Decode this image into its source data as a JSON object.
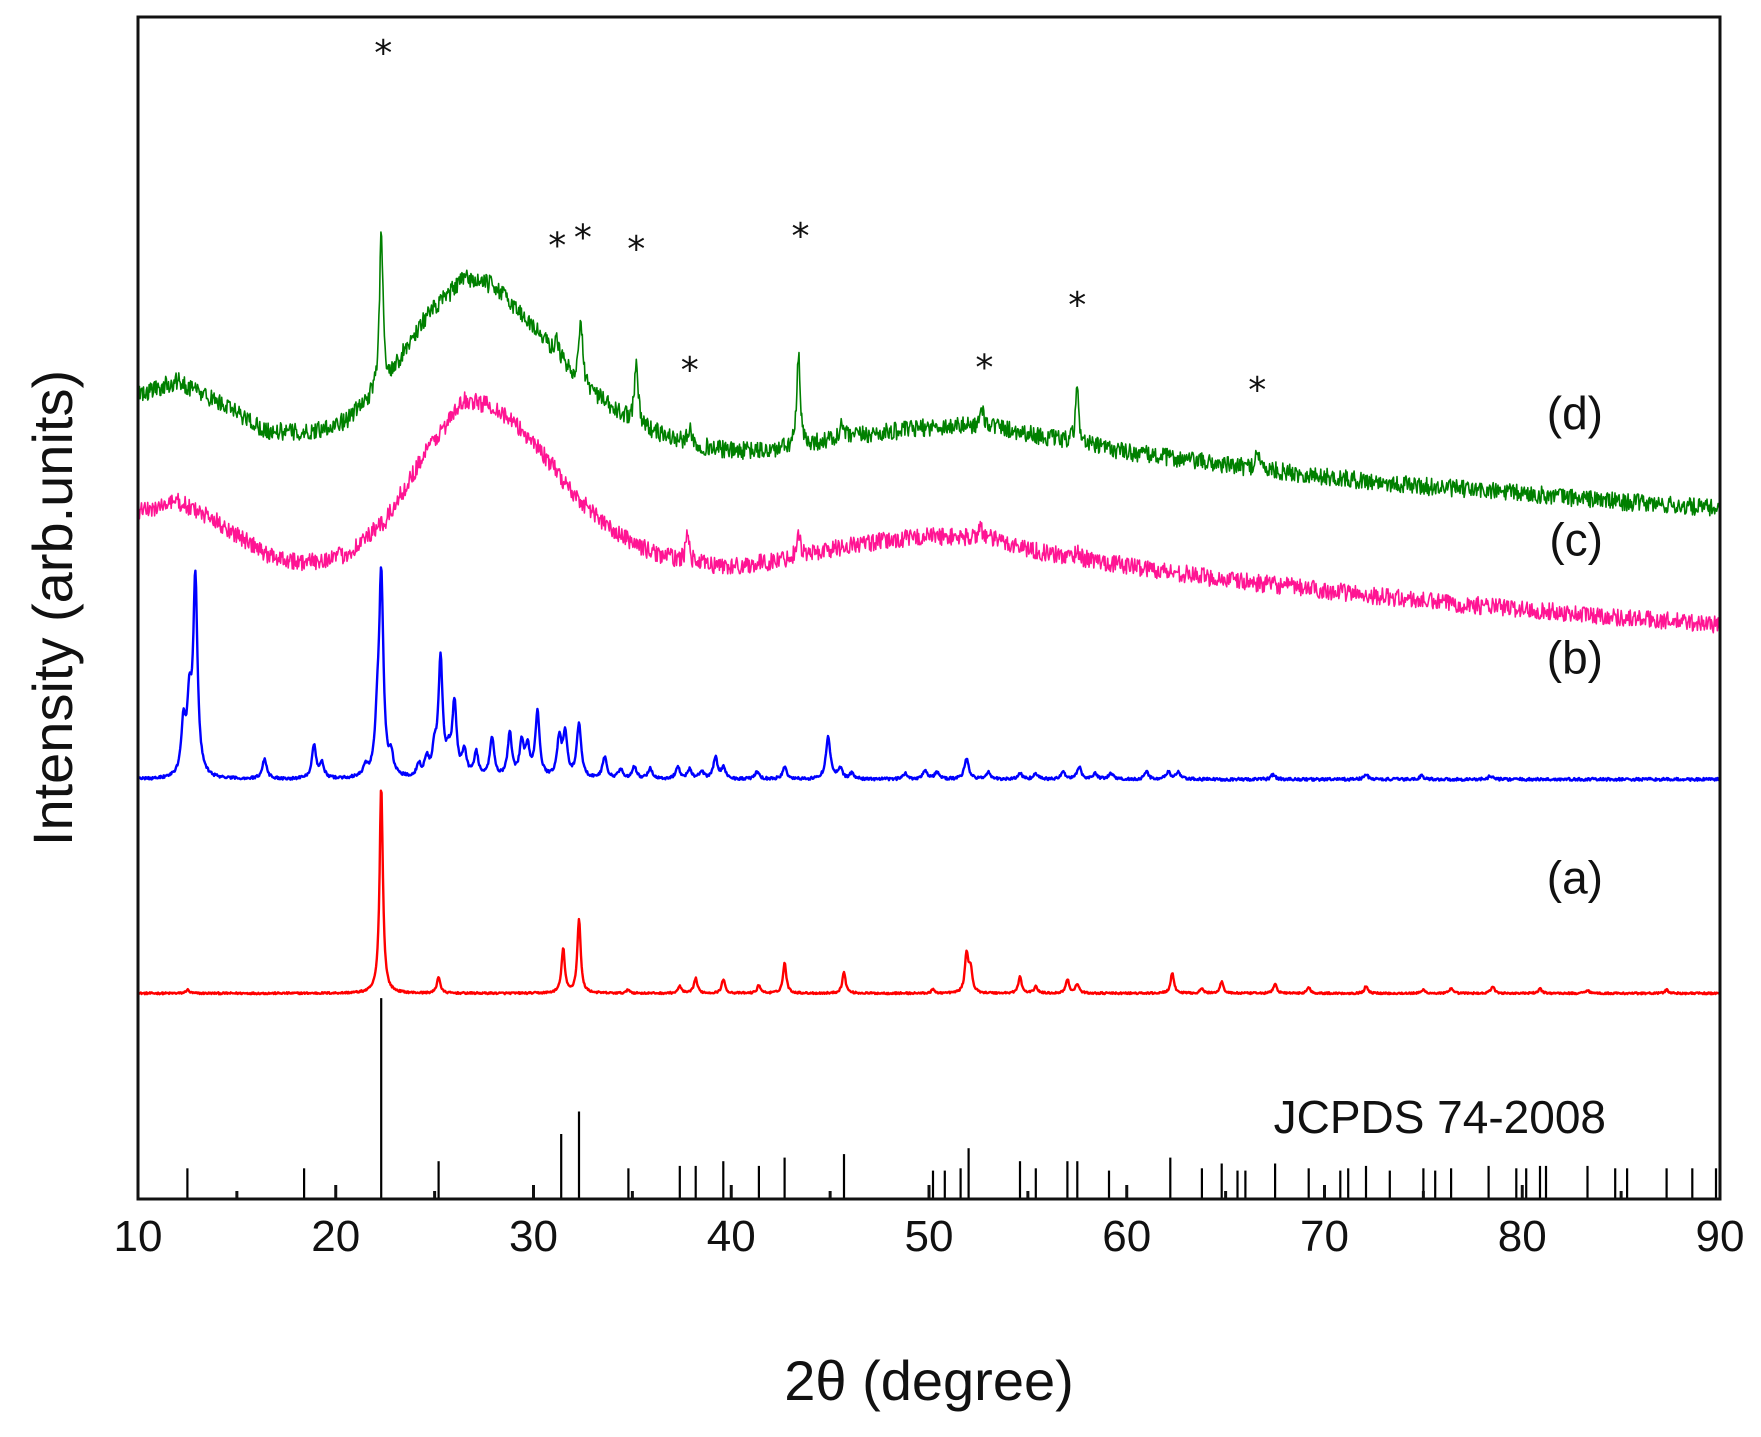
{
  "chart_data": {
    "type": "line",
    "title": "",
    "xlabel": "2θ (degree)",
    "ylabel": "Intensity (arb.units)",
    "xlim": [
      10,
      90
    ],
    "ylim": [
      0,
      10
    ],
    "xticks": [
      10,
      20,
      30,
      40,
      50,
      60,
      70,
      80,
      90
    ],
    "x_tick_labels": [
      "10",
      "20",
      "30",
      "40",
      "50",
      "60",
      "70",
      "80",
      "90"
    ],
    "grid": false,
    "legend": "none",
    "colors": {
      "a": "#ff0000",
      "b": "#0000ff",
      "c": "#ff1493",
      "d": "#008000",
      "reference": "#000000"
    },
    "reference": {
      "label": "JCPDS 74-2008",
      "baseline": 0,
      "peaks": [
        [
          12.5,
          0.26
        ],
        [
          18.4,
          0.26
        ],
        [
          22.3,
          1.7
        ],
        [
          25.2,
          0.32
        ],
        [
          31.4,
          0.55
        ],
        [
          32.3,
          0.74
        ],
        [
          34.8,
          0.26
        ],
        [
          37.4,
          0.28
        ],
        [
          38.2,
          0.28
        ],
        [
          39.6,
          0.32
        ],
        [
          41.4,
          0.28
        ],
        [
          42.7,
          0.35
        ],
        [
          45.7,
          0.38
        ],
        [
          50.2,
          0.24
        ],
        [
          50.8,
          0.24
        ],
        [
          51.6,
          0.26
        ],
        [
          52.0,
          0.43
        ],
        [
          54.6,
          0.32
        ],
        [
          55.4,
          0.26
        ],
        [
          57.0,
          0.32
        ],
        [
          57.5,
          0.32
        ],
        [
          59.1,
          0.24
        ],
        [
          62.2,
          0.35
        ],
        [
          63.8,
          0.26
        ],
        [
          64.8,
          0.3
        ],
        [
          65.6,
          0.24
        ],
        [
          66.0,
          0.24
        ],
        [
          67.5,
          0.3
        ],
        [
          69.2,
          0.26
        ],
        [
          70.8,
          0.24
        ],
        [
          71.2,
          0.26
        ],
        [
          72.1,
          0.28
        ],
        [
          73.3,
          0.24
        ],
        [
          75.0,
          0.26
        ],
        [
          75.6,
          0.24
        ],
        [
          76.4,
          0.26
        ],
        [
          78.3,
          0.28
        ],
        [
          79.7,
          0.26
        ],
        [
          80.2,
          0.26
        ],
        [
          80.9,
          0.28
        ],
        [
          81.2,
          0.28
        ],
        [
          83.3,
          0.28
        ],
        [
          84.7,
          0.26
        ],
        [
          85.3,
          0.26
        ],
        [
          87.3,
          0.26
        ],
        [
          88.6,
          0.26
        ],
        [
          89.8,
          0.26
        ]
      ]
    },
    "series": [
      {
        "name": "(a)",
        "baseline": 1.74,
        "width": 0.1,
        "noise": 0.008,
        "background": [
          [
            10,
            0
          ],
          [
            90,
            0
          ]
        ],
        "peaks": [
          [
            12.5,
            0.03
          ],
          [
            22.3,
            1.76
          ],
          [
            25.2,
            0.14
          ],
          [
            31.5,
            0.38
          ],
          [
            32.3,
            0.63
          ],
          [
            34.8,
            0.03
          ],
          [
            37.4,
            0.06
          ],
          [
            38.2,
            0.13
          ],
          [
            39.6,
            0.12
          ],
          [
            41.4,
            0.07
          ],
          [
            42.7,
            0.26
          ],
          [
            45.7,
            0.18
          ],
          [
            50.2,
            0.03
          ],
          [
            51.9,
            0.33
          ],
          [
            52.1,
            0.2
          ],
          [
            54.6,
            0.14
          ],
          [
            55.4,
            0.06
          ],
          [
            57.0,
            0.12
          ],
          [
            57.5,
            0.08
          ],
          [
            62.3,
            0.17
          ],
          [
            63.8,
            0.04
          ],
          [
            64.8,
            0.1
          ],
          [
            67.5,
            0.08
          ],
          [
            69.2,
            0.05
          ],
          [
            72.1,
            0.06
          ],
          [
            75.0,
            0.03
          ],
          [
            76.4,
            0.04
          ],
          [
            78.5,
            0.06
          ],
          [
            80.9,
            0.04
          ],
          [
            83.3,
            0.03
          ],
          [
            87.3,
            0.03
          ]
        ]
      },
      {
        "name": "(b)",
        "baseline": 3.55,
        "width": 0.13,
        "noise": 0.012,
        "background": [
          [
            10,
            0
          ],
          [
            90,
            0
          ]
        ],
        "peaks": [
          [
            12.3,
            0.43
          ],
          [
            12.6,
            0.57
          ],
          [
            12.9,
            1.67
          ],
          [
            16.4,
            0.17
          ],
          [
            18.9,
            0.28
          ],
          [
            19.3,
            0.12
          ],
          [
            21.5,
            0.09
          ],
          [
            22.1,
            0.37
          ],
          [
            22.3,
            1.68
          ],
          [
            22.8,
            0.16
          ],
          [
            24.2,
            0.1
          ],
          [
            24.6,
            0.15
          ],
          [
            25.0,
            0.2
          ],
          [
            25.3,
            0.98
          ],
          [
            25.7,
            0.15
          ],
          [
            26.0,
            0.61
          ],
          [
            26.5,
            0.22
          ],
          [
            27.1,
            0.21
          ],
          [
            27.9,
            0.34
          ],
          [
            28.8,
            0.37
          ],
          [
            29.4,
            0.28
          ],
          [
            29.7,
            0.24
          ],
          [
            30.2,
            0.55
          ],
          [
            31.3,
            0.32
          ],
          [
            31.6,
            0.36
          ],
          [
            32.3,
            0.46
          ],
          [
            33.6,
            0.18
          ],
          [
            34.4,
            0.08
          ],
          [
            35.1,
            0.1
          ],
          [
            35.9,
            0.09
          ],
          [
            37.3,
            0.1
          ],
          [
            37.9,
            0.08
          ],
          [
            38.5,
            0.06
          ],
          [
            39.2,
            0.18
          ],
          [
            39.6,
            0.09
          ],
          [
            41.3,
            0.06
          ],
          [
            42.7,
            0.1
          ],
          [
            44.9,
            0.37
          ],
          [
            45.5,
            0.09
          ],
          [
            46.1,
            0.05
          ],
          [
            48.8,
            0.05
          ],
          [
            49.8,
            0.08
          ],
          [
            50.4,
            0.06
          ],
          [
            51.9,
            0.18
          ],
          [
            53.0,
            0.06
          ],
          [
            54.6,
            0.05
          ],
          [
            55.4,
            0.05
          ],
          [
            56.8,
            0.06
          ],
          [
            57.6,
            0.1
          ],
          [
            58.4,
            0.05
          ],
          [
            59.2,
            0.05
          ],
          [
            61.0,
            0.06
          ],
          [
            62.1,
            0.06
          ],
          [
            62.6,
            0.06
          ],
          [
            67.4,
            0.04
          ],
          [
            72.1,
            0.04
          ],
          [
            74.9,
            0.03
          ],
          [
            78.4,
            0.03
          ]
        ]
      },
      {
        "name": "(c)",
        "baseline": 4.83,
        "width": 0.1,
        "noise": 0.075,
        "background": [
          [
            10,
            0.98
          ],
          [
            12.0,
            1.07
          ],
          [
            14.0,
            0.9
          ],
          [
            16.5,
            0.62
          ],
          [
            18.5,
            0.55
          ],
          [
            20.5,
            0.62
          ],
          [
            22.5,
            0.9
          ],
          [
            24.5,
            1.48
          ],
          [
            26.5,
            1.93
          ],
          [
            28.0,
            1.88
          ],
          [
            30.0,
            1.58
          ],
          [
            32.0,
            1.14
          ],
          [
            34.0,
            0.82
          ],
          [
            36.0,
            0.64
          ],
          [
            38.0,
            0.55
          ],
          [
            40.0,
            0.52
          ],
          [
            42.0,
            0.56
          ],
          [
            46.0,
            0.7
          ],
          [
            50.0,
            0.78
          ],
          [
            53.0,
            0.76
          ],
          [
            56.0,
            0.63
          ],
          [
            60.0,
            0.53
          ],
          [
            65.0,
            0.41
          ],
          [
            70.0,
            0.32
          ],
          [
            75.0,
            0.23
          ],
          [
            80.0,
            0.16
          ],
          [
            85.0,
            0.09
          ],
          [
            90.0,
            0.03
          ]
        ],
        "peaks": [
          [
            37.8,
            0.28
          ],
          [
            43.4,
            0.22
          ],
          [
            52.6,
            0.12
          ],
          [
            57.5,
            0.08
          ]
        ]
      },
      {
        "name": "(d)",
        "baseline": 5.8,
        "width": 0.1,
        "noise": 0.075,
        "background": [
          [
            10,
            1.0
          ],
          [
            12.0,
            1.12
          ],
          [
            14.0,
            0.95
          ],
          [
            16.5,
            0.7
          ],
          [
            18.5,
            0.68
          ],
          [
            20.5,
            0.78
          ],
          [
            22.5,
            1.1
          ],
          [
            24.5,
            1.65
          ],
          [
            26.5,
            1.99
          ],
          [
            28.0,
            1.93
          ],
          [
            30.0,
            1.58
          ],
          [
            32.0,
            1.18
          ],
          [
            34.0,
            0.88
          ],
          [
            36.0,
            0.7
          ],
          [
            38.0,
            0.58
          ],
          [
            40.0,
            0.53
          ],
          [
            42.0,
            0.53
          ],
          [
            46.0,
            0.65
          ],
          [
            50.0,
            0.73
          ],
          [
            53.0,
            0.75
          ],
          [
            56.0,
            0.64
          ],
          [
            60.0,
            0.52
          ],
          [
            65.0,
            0.41
          ],
          [
            70.0,
            0.31
          ],
          [
            75.0,
            0.23
          ],
          [
            80.0,
            0.17
          ],
          [
            85.0,
            0.1
          ],
          [
            90.0,
            0.04
          ]
        ],
        "peaks": [
          [
            22.3,
            1.4
          ],
          [
            31.2,
            0.14
          ],
          [
            32.4,
            0.52
          ],
          [
            35.2,
            0.56
          ],
          [
            37.9,
            0.16
          ],
          [
            43.4,
            0.76
          ],
          [
            45.6,
            0.12
          ],
          [
            52.7,
            0.14
          ],
          [
            57.5,
            0.46
          ],
          [
            66.6,
            0.18
          ]
        ]
      }
    ],
    "annotations": [
      {
        "text": "*",
        "x": 22.4,
        "y": 9.78
      },
      {
        "text": "*",
        "x": 31.2,
        "y": 8.15
      },
      {
        "text": "*",
        "x": 32.5,
        "y": 8.22
      },
      {
        "text": "*",
        "x": 35.2,
        "y": 8.12
      },
      {
        "text": "*",
        "x": 37.9,
        "y": 7.1
      },
      {
        "text": "*",
        "x": 43.5,
        "y": 8.23
      },
      {
        "text": "*",
        "x": 52.8,
        "y": 7.12
      },
      {
        "text": "*",
        "x": 57.5,
        "y": 7.65
      },
      {
        "text": "*",
        "x": 66.6,
        "y": 6.93
      }
    ],
    "trace_labels": [
      {
        "text": "(d)",
        "y": 6.65
      },
      {
        "text": "(c)",
        "y": 5.58
      },
      {
        "text": "(b)",
        "y": 4.58
      },
      {
        "text": "(a)",
        "y": 2.72
      }
    ]
  }
}
